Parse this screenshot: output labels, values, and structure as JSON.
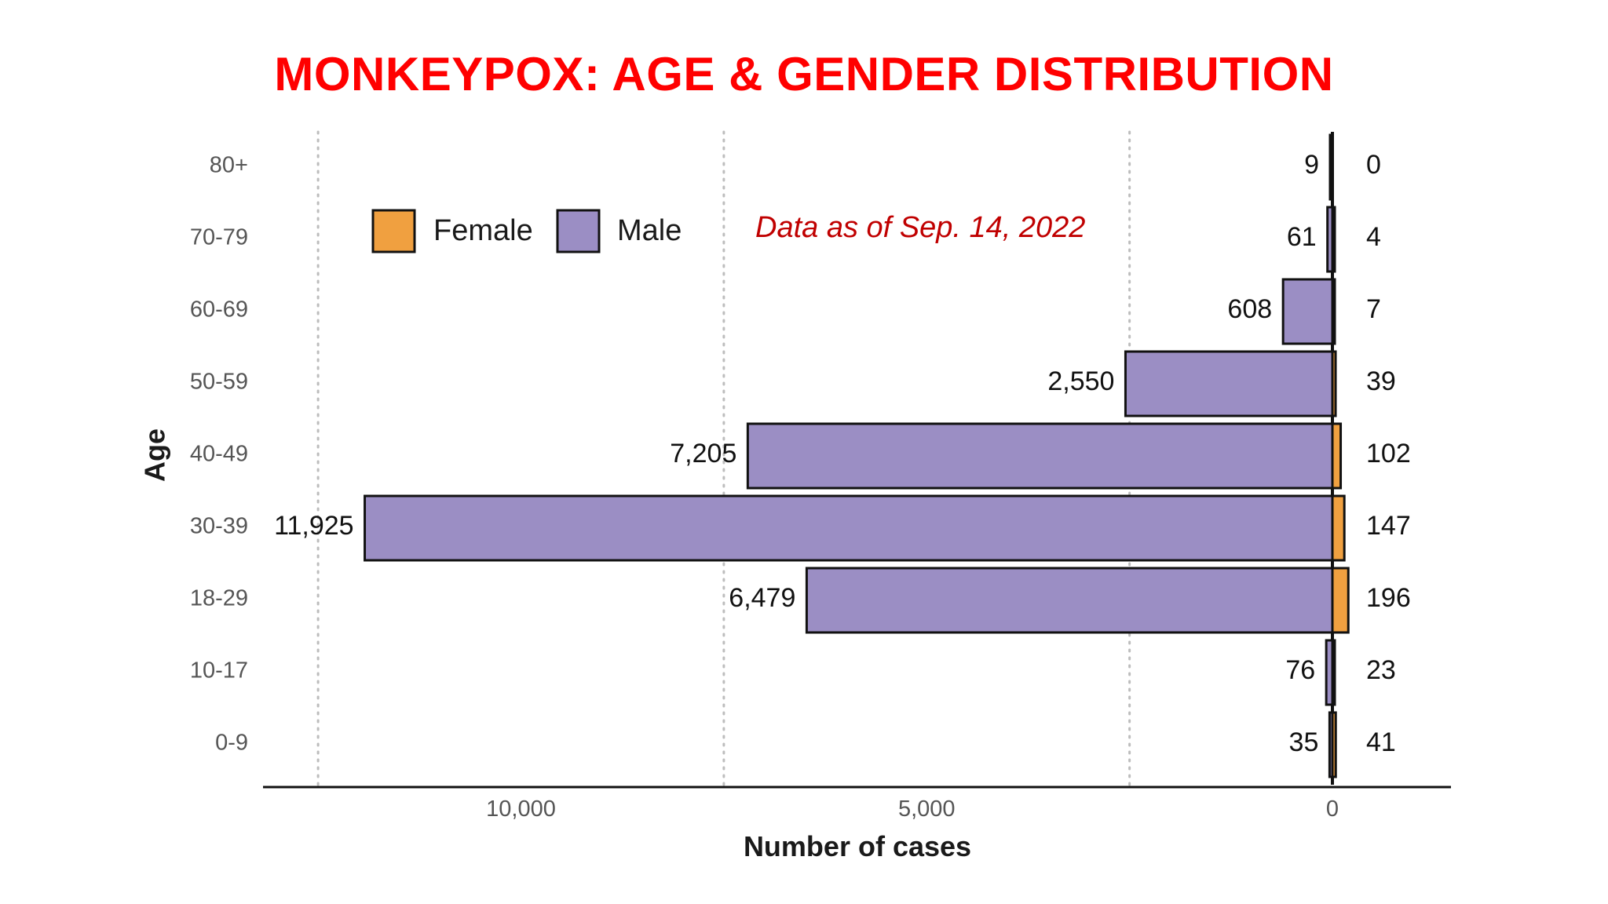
{
  "title": "MONKEYPOX: AGE & GENDER DISTRIBUTION",
  "chart_data": {
    "type": "bar",
    "orientation": "horizontal",
    "title": "MONKEYPOX: AGE & GENDER DISTRIBUTION",
    "ylabel": "Age",
    "xlabel": "Number of cases",
    "categories": [
      "80+",
      "70-79",
      "60-69",
      "50-59",
      "40-49",
      "30-39",
      "18-29",
      "10-17",
      "0-9"
    ],
    "series": [
      {
        "name": "Male",
        "color": "#9b8ec4",
        "values": [
          9,
          61,
          608,
          2550,
          7205,
          11925,
          6479,
          76,
          35
        ]
      },
      {
        "name": "Female",
        "color": "#f0a040",
        "values": [
          0,
          4,
          7,
          39,
          102,
          147,
          196,
          23,
          41
        ]
      }
    ],
    "male_labels": [
      "9",
      "61",
      "608",
      "2,550",
      "7,205",
      "11,925",
      "6,479",
      "76",
      "35"
    ],
    "female_labels": [
      "0",
      "4",
      "7",
      "39",
      "102",
      "147",
      "196",
      "23",
      "41"
    ],
    "x_ticks": [
      10000,
      5000,
      0
    ],
    "x_tick_labels": [
      "10,000",
      "5,000",
      "0"
    ],
    "xlim": [
      12500,
      -1450
    ],
    "grid": "vertical dotted",
    "annotation": "Data as of Sep. 14, 2022",
    "legend": {
      "position": "top-left",
      "items": [
        "Female",
        "Male"
      ]
    }
  }
}
